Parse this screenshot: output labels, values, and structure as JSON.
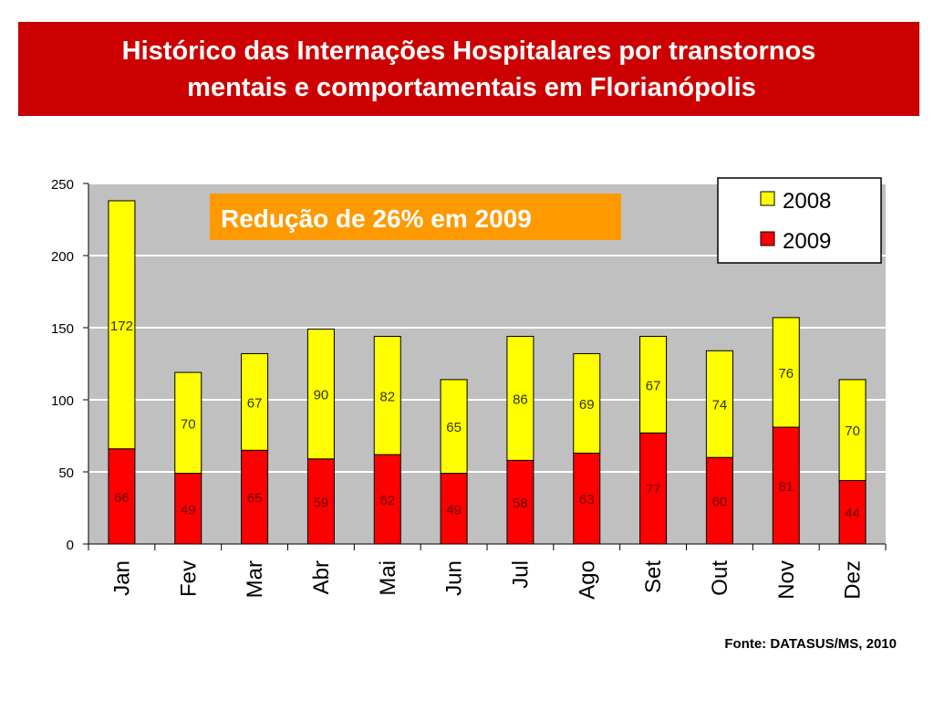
{
  "header": {
    "title_line1": "Histórico das Internações Hospitalares por transtornos",
    "title_line2": "mentais e comportamentais em Florianópolis"
  },
  "annotation": {
    "text": "Redução de 26% em 2009",
    "background": "#ff9900",
    "color": "#ffffff"
  },
  "source": "Fonte: DATASUS/MS, 2010",
  "colors": {
    "banner": "#cc0000",
    "plot_background": "#c0c0c0",
    "bar_2008": "#ffff00",
    "bar_2009": "#ff0000",
    "label_2008": "#333300",
    "label_2009": "#660000"
  },
  "chart_data": {
    "type": "bar",
    "stacked": true,
    "categories": [
      "Jan",
      "Fev",
      "Mar",
      "Abr",
      "Mai",
      "Jun",
      "Jul",
      "Ago",
      "Set",
      "Out",
      "Nov",
      "Dez"
    ],
    "series": [
      {
        "name": "2009",
        "values": [
          66,
          49,
          65,
          59,
          62,
          49,
          58,
          63,
          77,
          60,
          81,
          44
        ]
      },
      {
        "name": "2008",
        "values": [
          172,
          70,
          67,
          90,
          82,
          65,
          86,
          69,
          67,
          74,
          76,
          70
        ]
      }
    ],
    "legend_order": [
      "2008",
      "2009"
    ],
    "legend_position": "top-right",
    "ylim": [
      0,
      250
    ],
    "yticks": [
      0,
      50,
      100,
      150,
      200,
      250
    ],
    "grid": true,
    "xlabel": "",
    "ylabel": ""
  }
}
